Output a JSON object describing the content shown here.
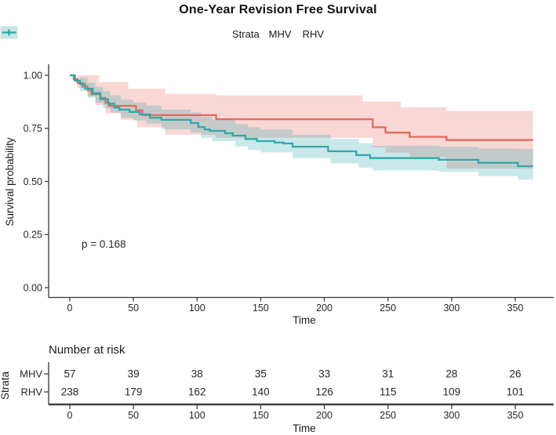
{
  "title": "One-Year Revision Free Survival",
  "legend": {
    "label": "Strata",
    "items": [
      {
        "name": "MHV",
        "color": "#E16A5F",
        "fill": "#F5D2CE"
      },
      {
        "name": "RHV",
        "color": "#2FA8AB",
        "fill": "#C9E5E5"
      }
    ]
  },
  "chart_data": {
    "type": "line",
    "subtype": "kaplan-meier-step-with-confidence-bands",
    "title": "One-Year Revision Free Survival",
    "xlabel": "Time",
    "ylabel": "Survival probability",
    "pvalue_text": "p = 0.168",
    "xlim": [
      0,
      364
    ],
    "ylim": [
      0,
      1
    ],
    "xticks": [
      0,
      50,
      100,
      150,
      200,
      250,
      300,
      350
    ],
    "yticks": [
      0,
      0.25,
      0.5,
      0.75,
      1
    ],
    "ytick_labels": [
      "0.00",
      "0.25",
      "0.50",
      "0.75",
      "1.00"
    ],
    "grid": false,
    "legend_position": "top",
    "end_time": 364,
    "series": [
      {
        "name": "MHV",
        "color": "#E16A5F",
        "band_fill": "rgba(229,108,97,0.27)",
        "steps": [
          [
            0,
            1.0
          ],
          [
            3,
            0.982
          ],
          [
            6,
            0.964
          ],
          [
            10,
            0.947
          ],
          [
            14,
            0.929
          ],
          [
            17,
            0.911
          ],
          [
            24,
            0.893
          ],
          [
            28,
            0.871
          ],
          [
            31,
            0.856
          ],
          [
            52,
            0.835
          ],
          [
            57,
            0.812
          ],
          [
            115,
            0.793
          ],
          [
            238,
            0.755
          ],
          [
            248,
            0.73
          ],
          [
            267,
            0.71
          ],
          [
            296,
            0.695
          ]
        ],
        "censors": [
          [
            33,
            0.856
          ],
          [
            37,
            0.856
          ],
          [
            41,
            0.856
          ],
          [
            45,
            0.856
          ],
          [
            48,
            0.856
          ],
          [
            65,
            0.812
          ],
          [
            132,
            0.793
          ],
          [
            137,
            0.793
          ],
          [
            195,
            0.793
          ],
          [
            252,
            0.73
          ],
          [
            326,
            0.695
          ],
          [
            341,
            0.695
          ],
          [
            363,
            0.695
          ]
        ],
        "ci_upper_estimated": [
          [
            0,
            1.0
          ],
          [
            10,
            1.0
          ],
          [
            23,
            0.967
          ],
          [
            46,
            0.937
          ],
          [
            75,
            0.912
          ],
          [
            115,
            0.905
          ],
          [
            230,
            0.876
          ],
          [
            260,
            0.85
          ],
          [
            296,
            0.832
          ]
        ],
        "ci_lower_estimated": [
          [
            0,
            1.0
          ],
          [
            6,
            0.94
          ],
          [
            14,
            0.9
          ],
          [
            20,
            0.86
          ],
          [
            28,
            0.82
          ],
          [
            40,
            0.79
          ],
          [
            53,
            0.755
          ],
          [
            75,
            0.72
          ],
          [
            115,
            0.705
          ],
          [
            238,
            0.66
          ],
          [
            248,
            0.635
          ],
          [
            267,
            0.615
          ],
          [
            296,
            0.56
          ]
        ]
      },
      {
        "name": "RHV",
        "color": "#2FA8AB",
        "band_fill": "rgba(47,168,171,0.26)",
        "steps": [
          [
            0,
            1.0
          ],
          [
            4,
            0.975
          ],
          [
            8,
            0.958
          ],
          [
            12,
            0.937
          ],
          [
            18,
            0.916
          ],
          [
            24,
            0.887
          ],
          [
            30,
            0.866
          ],
          [
            35,
            0.848
          ],
          [
            39,
            0.838
          ],
          [
            47,
            0.827
          ],
          [
            55,
            0.816
          ],
          [
            63,
            0.8
          ],
          [
            72,
            0.79
          ],
          [
            95,
            0.775
          ],
          [
            101,
            0.756
          ],
          [
            106,
            0.745
          ],
          [
            110,
            0.738
          ],
          [
            122,
            0.727
          ],
          [
            128,
            0.716
          ],
          [
            138,
            0.7
          ],
          [
            147,
            0.69
          ],
          [
            161,
            0.683
          ],
          [
            168,
            0.679
          ],
          [
            175,
            0.664
          ],
          [
            203,
            0.642
          ],
          [
            225,
            0.624
          ],
          [
            236,
            0.61
          ],
          [
            290,
            0.602
          ],
          [
            321,
            0.588
          ],
          [
            352,
            0.572
          ]
        ],
        "censors": [
          [
            31,
            0.866
          ],
          [
            43,
            0.838
          ],
          [
            50,
            0.827
          ],
          [
            58,
            0.816
          ],
          [
            66,
            0.8
          ],
          [
            73,
            0.79
          ],
          [
            84,
            0.79
          ],
          [
            93,
            0.79
          ],
          [
            103,
            0.756
          ],
          [
            118,
            0.738
          ],
          [
            136,
            0.716
          ],
          [
            150,
            0.69
          ],
          [
            156,
            0.69
          ],
          [
            163,
            0.683
          ],
          [
            178,
            0.664
          ],
          [
            184,
            0.664
          ],
          [
            189,
            0.664
          ],
          [
            193,
            0.664
          ],
          [
            198,
            0.664
          ],
          [
            215,
            0.642
          ],
          [
            230,
            0.624
          ],
          [
            252,
            0.61
          ],
          [
            264,
            0.61
          ],
          [
            272,
            0.61
          ],
          [
            284,
            0.61
          ],
          [
            307,
            0.602
          ],
          [
            312,
            0.602
          ],
          [
            318,
            0.602
          ],
          [
            333,
            0.588
          ],
          [
            344,
            0.588
          ],
          [
            357,
            0.572
          ],
          [
            362,
            0.572
          ]
        ],
        "ci_upper_estimated": [
          [
            0,
            1.0
          ],
          [
            8,
            0.99
          ],
          [
            14,
            0.965
          ],
          [
            20,
            0.945
          ],
          [
            26,
            0.925
          ],
          [
            32,
            0.905
          ],
          [
            40,
            0.885
          ],
          [
            50,
            0.872
          ],
          [
            60,
            0.857
          ],
          [
            72,
            0.838
          ],
          [
            95,
            0.825
          ],
          [
            103,
            0.805
          ],
          [
            112,
            0.79
          ],
          [
            130,
            0.77
          ],
          [
            140,
            0.755
          ],
          [
            150,
            0.745
          ],
          [
            175,
            0.72
          ],
          [
            205,
            0.7
          ],
          [
            227,
            0.68
          ],
          [
            238,
            0.668
          ],
          [
            290,
            0.663
          ],
          [
            321,
            0.655
          ],
          [
            352,
            0.653
          ]
        ],
        "ci_lower_estimated": [
          [
            0,
            1.0
          ],
          [
            8,
            0.925
          ],
          [
            14,
            0.895
          ],
          [
            20,
            0.87
          ],
          [
            26,
            0.845
          ],
          [
            32,
            0.825
          ],
          [
            40,
            0.8
          ],
          [
            50,
            0.787
          ],
          [
            60,
            0.772
          ],
          [
            72,
            0.745
          ],
          [
            95,
            0.73
          ],
          [
            103,
            0.705
          ],
          [
            112,
            0.69
          ],
          [
            130,
            0.665
          ],
          [
            140,
            0.648
          ],
          [
            150,
            0.637
          ],
          [
            175,
            0.61
          ],
          [
            205,
            0.585
          ],
          [
            227,
            0.565
          ],
          [
            238,
            0.552
          ],
          [
            290,
            0.545
          ],
          [
            321,
            0.525
          ],
          [
            352,
            0.508
          ]
        ]
      }
    ]
  },
  "risk_table": {
    "title": "Number at risk",
    "axis_label": "Strata",
    "xlabel": "Time",
    "time_ticks": [
      0,
      50,
      100,
      150,
      200,
      250,
      300,
      350
    ],
    "rows": [
      {
        "name": "MHV",
        "color": "#E16A5F",
        "values": [
          57,
          39,
          38,
          35,
          33,
          31,
          28,
          26
        ]
      },
      {
        "name": "RHV",
        "color": "#2FA8AB",
        "values": [
          238,
          179,
          162,
          140,
          126,
          115,
          109,
          101
        ]
      }
    ]
  }
}
